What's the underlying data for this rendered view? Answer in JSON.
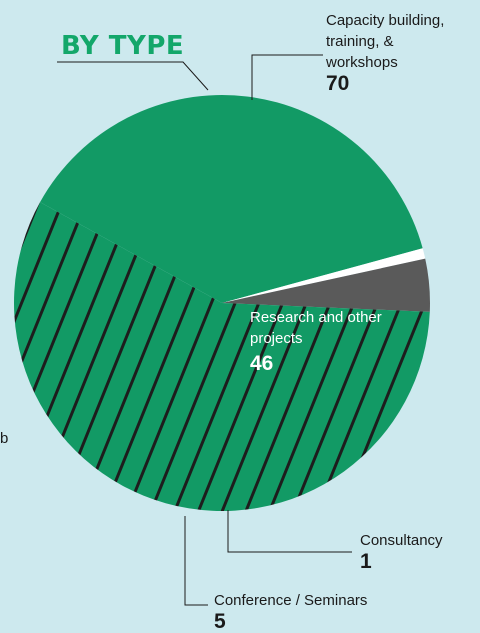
{
  "heading": "BY TYPE",
  "clipped_fragment": "b",
  "colors": {
    "background": "#cde9ee",
    "green": "#129a65",
    "hatch": "#1d1d1d",
    "gray": "#5a5a5a",
    "heading": "#13a76a"
  },
  "chart_data": {
    "type": "pie",
    "title": "BY TYPE",
    "slices": [
      {
        "label": "Research and other projects",
        "value": 46,
        "pattern": "solid",
        "color": "#129a65"
      },
      {
        "label": "Consultancy",
        "value": 1,
        "pattern": "solid",
        "color": "#ffffff"
      },
      {
        "label": "Conference / Seminars",
        "value": 5,
        "pattern": "solid",
        "color": "#5a5a5a"
      },
      {
        "label": "Capacity building, training, & workshops",
        "value": 70,
        "pattern": "hatched",
        "color": "#129a65"
      }
    ],
    "labels": {
      "capacity": {
        "lines": [
          "Capacity building,",
          "training, &",
          "workshops"
        ],
        "value": "70"
      },
      "research": {
        "lines": [
          "Research and other",
          "projects"
        ],
        "value": "46"
      },
      "consultancy": {
        "lines": [
          "Consultancy"
        ],
        "value": "1"
      },
      "conference": {
        "lines": [
          "Conference / Seminars"
        ],
        "value": "5"
      }
    }
  }
}
